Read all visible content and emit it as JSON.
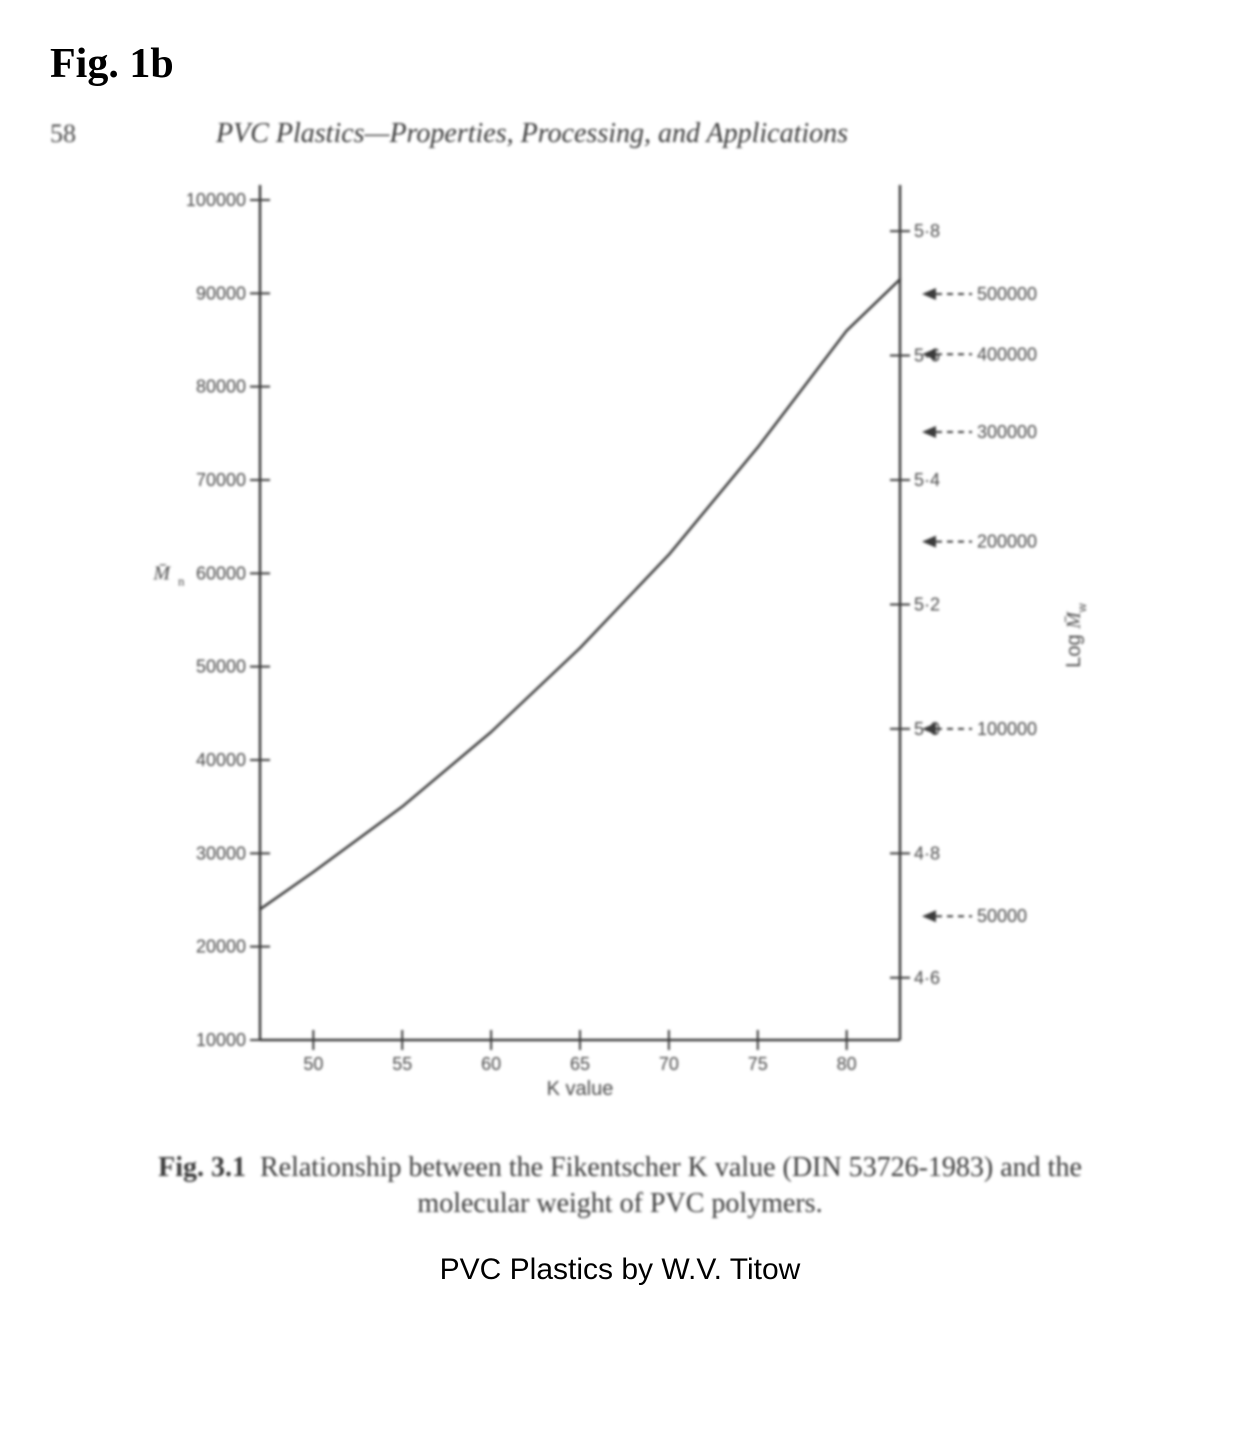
{
  "figure_label": "Fig. 1b",
  "page_number": "58",
  "book_section_title": "PVC Plastics—Properties, Processing, and Applications",
  "caption_prefix": "Fig. 3.1",
  "caption_text": "Relationship between the Fikentscher K value (DIN 53726-1983) and the molecular weight of PVC polymers.",
  "source": "PVC Plastics by W.V. Titow",
  "chart": {
    "type": "line",
    "background_color": "#ffffff",
    "line_color": "#333333",
    "axis_color": "#333333",
    "tick_color": "#333333",
    "label_color": "#444444",
    "line_width": 2.5,
    "tick_width": 2,
    "axis_width": 2.5,
    "tick_font_family": "Arial, sans-serif",
    "tick_fontsize": 18,
    "axis_label_fontsize": 20,
    "x_axis": {
      "label": "K value",
      "min": 47,
      "max": 83,
      "ticks": [
        50,
        55,
        60,
        65,
        70,
        75,
        80
      ]
    },
    "y_left": {
      "label": "M̄n",
      "min": 10000,
      "max": 100000,
      "ticks": [
        10000,
        20000,
        30000,
        40000,
        50000,
        60000,
        70000,
        80000,
        90000,
        100000
      ]
    },
    "y_right_log": {
      "label": "Log M̄w",
      "ticks": [
        {
          "v": 4.6,
          "label": "4·6"
        },
        {
          "v": 4.8,
          "label": "4·8"
        },
        {
          "v": 5.0,
          "label": "5·0"
        },
        {
          "v": 5.2,
          "label": "5·2"
        },
        {
          "v": 5.4,
          "label": "5·4"
        },
        {
          "v": 5.6,
          "label": "5·6"
        },
        {
          "v": 5.8,
          "label": "5·8"
        }
      ],
      "min": 4.5,
      "max": 5.85
    },
    "y_right_mw_marks": [
      {
        "v": 50000,
        "label": "50000"
      },
      {
        "v": 100000,
        "label": "100000"
      },
      {
        "v": 200000,
        "label": "200000"
      },
      {
        "v": 300000,
        "label": "300000"
      },
      {
        "v": 400000,
        "label": "400000"
      },
      {
        "v": 500000,
        "label": "500000"
      }
    ],
    "mw_arrow_offset_x": 22,
    "series": {
      "x": [
        47,
        50,
        55,
        60,
        65,
        70,
        75,
        80,
        83
      ],
      "y": [
        24000,
        28000,
        35000,
        43000,
        52000,
        62000,
        73500,
        86000,
        91500
      ]
    }
  }
}
